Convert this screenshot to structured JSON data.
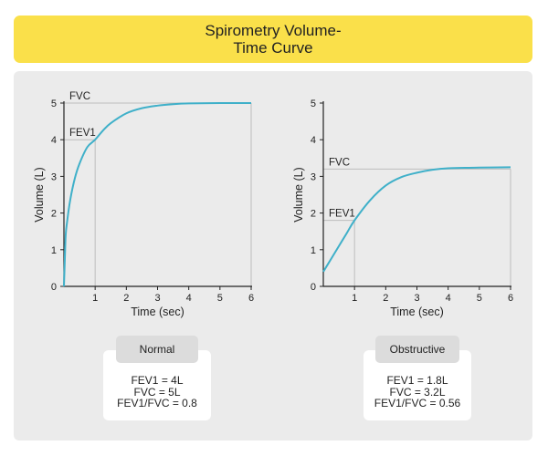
{
  "title": {
    "line1": "Spirometry Volume-",
    "line2": "Time Curve"
  },
  "chart_data": [
    {
      "type": "line",
      "name": "normal",
      "xlabel": "Time (sec)",
      "ylabel": "Volume (L)",
      "xlim": [
        0,
        6
      ],
      "ylim": [
        0,
        5
      ],
      "xticks": [
        1,
        2,
        3,
        4,
        5,
        6
      ],
      "yticks": [
        0,
        1,
        2,
        3,
        4,
        5
      ],
      "series": [
        {
          "name": "Volume",
          "x": [
            0,
            0.05,
            0.1,
            0.2,
            0.35,
            0.5,
            0.75,
            1,
            1.25,
            1.5,
            2,
            2.5,
            3,
            3.5,
            4,
            5,
            6
          ],
          "y": [
            0,
            1.3,
            1.75,
            2.35,
            2.95,
            3.35,
            3.8,
            4.0,
            4.25,
            4.45,
            4.72,
            4.86,
            4.93,
            4.97,
            4.99,
            5.0,
            5.0
          ]
        }
      ],
      "annotations": {
        "fvc_label": "FVC",
        "fvc_value": 5,
        "fev1_label": "FEV1",
        "fev1_value": 4
      }
    },
    {
      "type": "line",
      "name": "obstructive",
      "xlabel": "Time (sec)",
      "ylabel": "Volume (L)",
      "xlim": [
        0,
        6
      ],
      "ylim": [
        0,
        5
      ],
      "xticks": [
        1,
        2,
        3,
        4,
        5,
        6
      ],
      "yticks": [
        0,
        1,
        2,
        3,
        4,
        5
      ],
      "series": [
        {
          "name": "Volume",
          "x": [
            0,
            0.25,
            0.5,
            0.75,
            1,
            1.5,
            2,
            2.5,
            3,
            3.5,
            4,
            5,
            6
          ],
          "y": [
            0.4,
            0.75,
            1.1,
            1.45,
            1.8,
            2.35,
            2.75,
            2.98,
            3.1,
            3.18,
            3.22,
            3.24,
            3.25
          ]
        }
      ],
      "annotations": {
        "fvc_label": "FVC",
        "fvc_value": 3.2,
        "fev1_label": "FEV1",
        "fev1_value": 1.8
      }
    }
  ],
  "cards": [
    {
      "label": "Normal",
      "lines": [
        "FEV1 = 4L",
        "FVC = 5L",
        "FEV1/FVC = 0.8"
      ]
    },
    {
      "label": "Obstructive",
      "lines": [
        "FEV1 = 1.8L",
        "FVC = 3.2L",
        "FEV1/FVC = 0.56"
      ]
    }
  ],
  "colors": {
    "title_bg": "#fae04a",
    "panel_bg": "#ebebeb",
    "curve": "#3fb0c9",
    "axis": "#222222",
    "guide": "#bdbdbd"
  }
}
